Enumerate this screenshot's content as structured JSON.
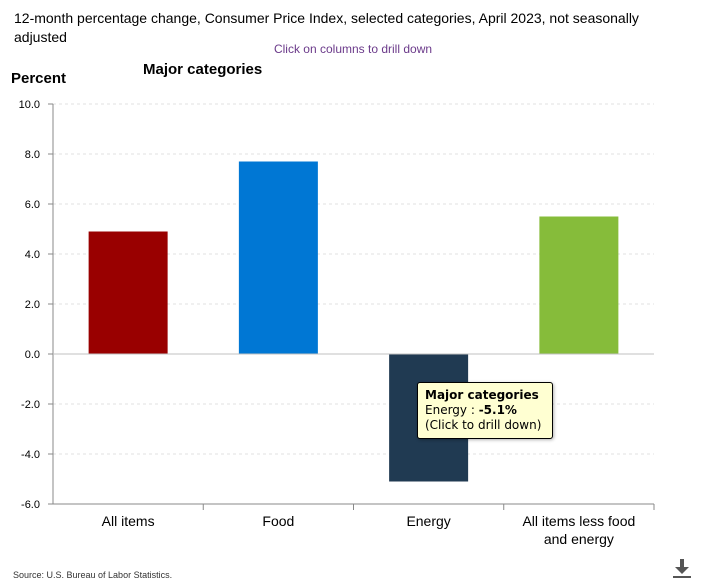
{
  "header": {
    "title": "12-month percentage change, Consumer Price Index, selected categories, April 2023, not seasonally adjusted",
    "drill_hint": "Click on columns to drill down",
    "section_title": "Major categories"
  },
  "tooltip": {
    "title": "Major categories",
    "category": "Energy",
    "separator": " : ",
    "value": "-5.1%",
    "hint": "(Click to drill down)"
  },
  "footer": {
    "source": "Source: U.S. Bureau of Labor Statistics.",
    "download_icon": "download-icon"
  },
  "chart_data": {
    "type": "bar",
    "ylabel": "Percent",
    "ylim": [
      -6,
      10
    ],
    "yticks": [
      "10.0",
      "8.0",
      "6.0",
      "4.0",
      "2.0",
      "0.0",
      "-2.0",
      "-4.0",
      "-6.0"
    ],
    "categories": [
      "All items",
      "Food",
      "Energy",
      "All items less food and energy"
    ],
    "category_lines": [
      [
        "All items"
      ],
      [
        "Food"
      ],
      [
        "Energy"
      ],
      [
        "All items less food",
        "and energy"
      ]
    ],
    "values": [
      4.9,
      7.7,
      -5.1,
      5.5
    ],
    "colors": [
      "#990000",
      "#0077d4",
      "#203a52",
      "#86bc3a"
    ],
    "grid": true,
    "legend": "none"
  }
}
